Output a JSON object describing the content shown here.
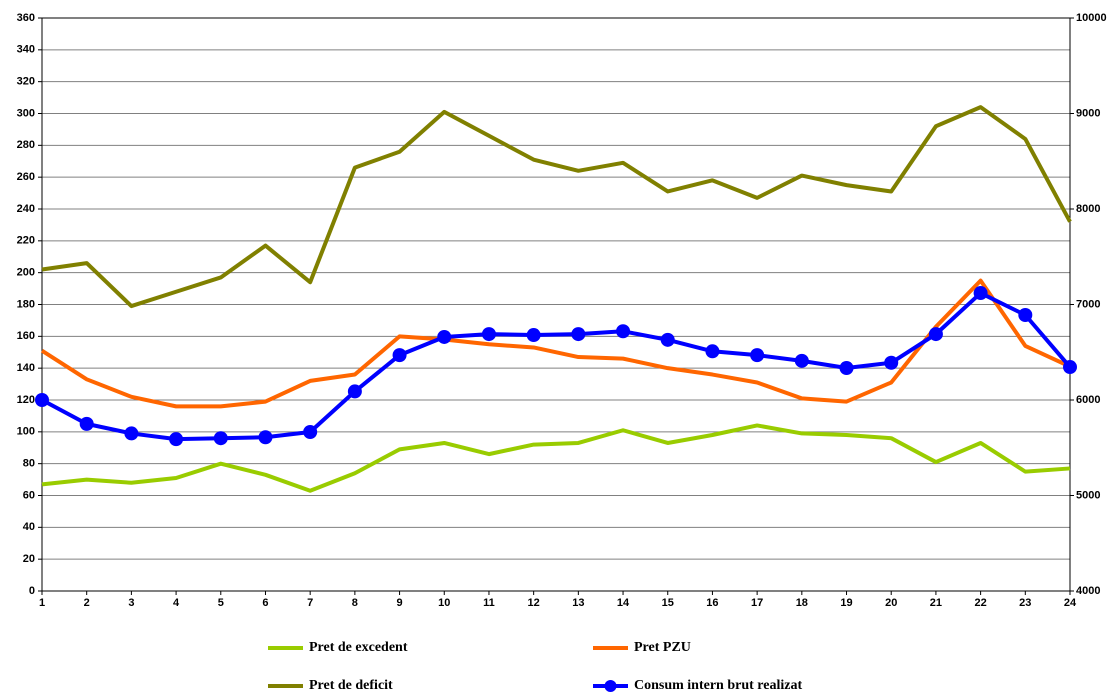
{
  "chart_data": {
    "type": "line",
    "x": [
      1,
      2,
      3,
      4,
      5,
      6,
      7,
      8,
      9,
      10,
      11,
      12,
      13,
      14,
      15,
      16,
      17,
      18,
      19,
      20,
      21,
      22,
      23,
      24
    ],
    "xlim": [
      1,
      24
    ],
    "xticks": [
      1,
      2,
      3,
      4,
      5,
      6,
      7,
      8,
      9,
      10,
      11,
      12,
      13,
      14,
      15,
      16,
      17,
      18,
      19,
      20,
      21,
      22,
      23,
      24
    ],
    "ylim": [
      0,
      360
    ],
    "yticks": [
      0,
      20,
      40,
      60,
      80,
      100,
      120,
      140,
      160,
      180,
      200,
      220,
      240,
      260,
      280,
      300,
      320,
      340,
      360
    ],
    "y2lim": [
      4000,
      10000
    ],
    "y2ticks": [
      4000,
      5000,
      6000,
      7000,
      8000,
      9000,
      10000
    ],
    "grid": true,
    "legend": "bottom",
    "series": [
      {
        "name": "Pret de excedent",
        "color": "#99cc00",
        "values": [
          67,
          70,
          68,
          71,
          80,
          73,
          63,
          74,
          89,
          93,
          86,
          92,
          93,
          101,
          93,
          98,
          104,
          99,
          98,
          96,
          81,
          93,
          75,
          77
        ]
      },
      {
        "name": "Pret PZU",
        "color": "#ff6600",
        "values": [
          151,
          133,
          122,
          116,
          116,
          119,
          132,
          136,
          160,
          158,
          155,
          153,
          147,
          146,
          140,
          136,
          131,
          121,
          119,
          131,
          166,
          195,
          154,
          141
        ]
      },
      {
        "name": "Pret de deficit",
        "color": "#808000",
        "values": [
          202,
          206,
          179,
          188,
          197,
          217,
          194,
          266,
          276,
          301,
          286,
          271,
          264,
          269,
          251,
          258,
          247,
          261,
          255,
          251,
          292,
          304,
          284,
          232
        ]
      },
      {
        "name": "Consum intern brut realizat",
        "color": "#0000ff",
        "axis": "y2",
        "marker": "circle",
        "values": [
          6000,
          5750,
          5650,
          5590,
          5600,
          5610,
          5665,
          6090,
          6470,
          6660,
          6690,
          6680,
          6690,
          6720,
          6630,
          6510,
          6470,
          6410,
          6335,
          6390,
          6690,
          7120,
          6890,
          6345
        ]
      }
    ]
  }
}
